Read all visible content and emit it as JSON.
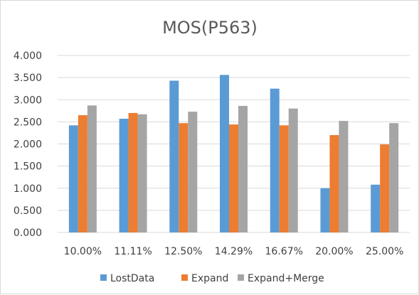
{
  "chart_data": {
    "type": "bar",
    "title": "MOS(P563)",
    "xlabel": "",
    "ylabel": "",
    "categories": [
      "10.00%",
      "11.11%",
      "12.50%",
      "14.29%",
      "16.67%",
      "20.00%",
      "25.00%"
    ],
    "series": [
      {
        "name": "LostData",
        "color": "#5b9bd5",
        "values": [
          2.42,
          2.57,
          3.43,
          3.56,
          3.25,
          1.0,
          1.08
        ]
      },
      {
        "name": "Expand",
        "color": "#ed7d31",
        "values": [
          2.65,
          2.7,
          2.47,
          2.44,
          2.42,
          2.2,
          1.99
        ]
      },
      {
        "name": "Expand+Merge",
        "color": "#a5a5a5",
        "values": [
          2.87,
          2.67,
          2.73,
          2.86,
          2.8,
          2.52,
          2.47
        ]
      }
    ],
    "ylim": [
      0,
      4
    ],
    "yticks": [
      "0.000",
      "0.500",
      "1.000",
      "1.500",
      "2.000",
      "2.500",
      "3.000",
      "3.500",
      "4.000"
    ],
    "ytick_values": [
      0,
      0.5,
      1,
      1.5,
      2,
      2.5,
      3,
      3.5,
      4
    ],
    "grid": true,
    "legend_position": "bottom"
  }
}
